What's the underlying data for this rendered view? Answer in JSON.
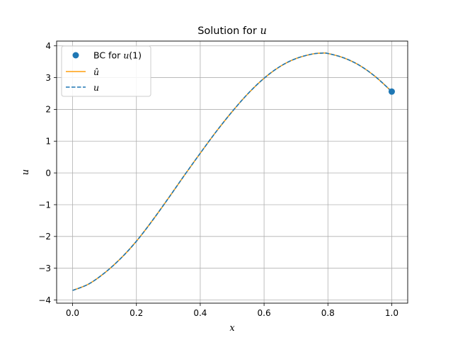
{
  "chart_data": {
    "type": "line",
    "title_prefix": "Solution for ",
    "title_var": "u",
    "xlabel": "x",
    "ylabel": "u",
    "xlim": [
      -0.05,
      1.05
    ],
    "ylim": [
      -4.1,
      4.15
    ],
    "xticks": [
      0.0,
      0.2,
      0.4,
      0.6,
      0.8,
      1.0
    ],
    "xtick_labels": [
      "0.0",
      "0.2",
      "0.4",
      "0.6",
      "0.8",
      "1.0"
    ],
    "yticks": [
      -4,
      -3,
      -2,
      -1,
      0,
      1,
      2,
      3,
      4
    ],
    "ytick_labels": [
      "−4",
      "−3",
      "−2",
      "−1",
      "0",
      "1",
      "2",
      "3",
      "4"
    ],
    "grid": true,
    "legend_position": "upper-left",
    "x": [
      0.0,
      0.05,
      0.1,
      0.15,
      0.2,
      0.25,
      0.3,
      0.35,
      0.4,
      0.45,
      0.5,
      0.55,
      0.6,
      0.65,
      0.7,
      0.75,
      0.78,
      0.8,
      0.85,
      0.9,
      0.95,
      1.0
    ],
    "series": [
      {
        "name": "û",
        "legend_prefix": "",
        "legend_var": "û",
        "kind": "line",
        "color": "#ff9f0e",
        "y": [
          -3.7,
          -3.5,
          -3.15,
          -2.7,
          -2.15,
          -1.5,
          -0.8,
          -0.08,
          0.62,
          1.3,
          1.93,
          2.5,
          2.98,
          3.35,
          3.6,
          3.74,
          3.77,
          3.76,
          3.62,
          3.38,
          3.02,
          2.56
        ]
      },
      {
        "name": "u",
        "legend_prefix": "",
        "legend_var": "u",
        "kind": "dashed-line",
        "color": "#1f77b4",
        "y": [
          -3.7,
          -3.5,
          -3.15,
          -2.7,
          -2.15,
          -1.5,
          -0.8,
          -0.08,
          0.62,
          1.3,
          1.93,
          2.5,
          2.98,
          3.35,
          3.6,
          3.74,
          3.77,
          3.76,
          3.62,
          3.38,
          3.02,
          2.56
        ]
      }
    ],
    "points": [
      {
        "name": "BC for u(1)",
        "legend_prefix": "BC for ",
        "legend_var": "u",
        "legend_suffix": "(1)",
        "color": "#1f77b4",
        "x": 1.0,
        "y": 2.56
      }
    ]
  }
}
